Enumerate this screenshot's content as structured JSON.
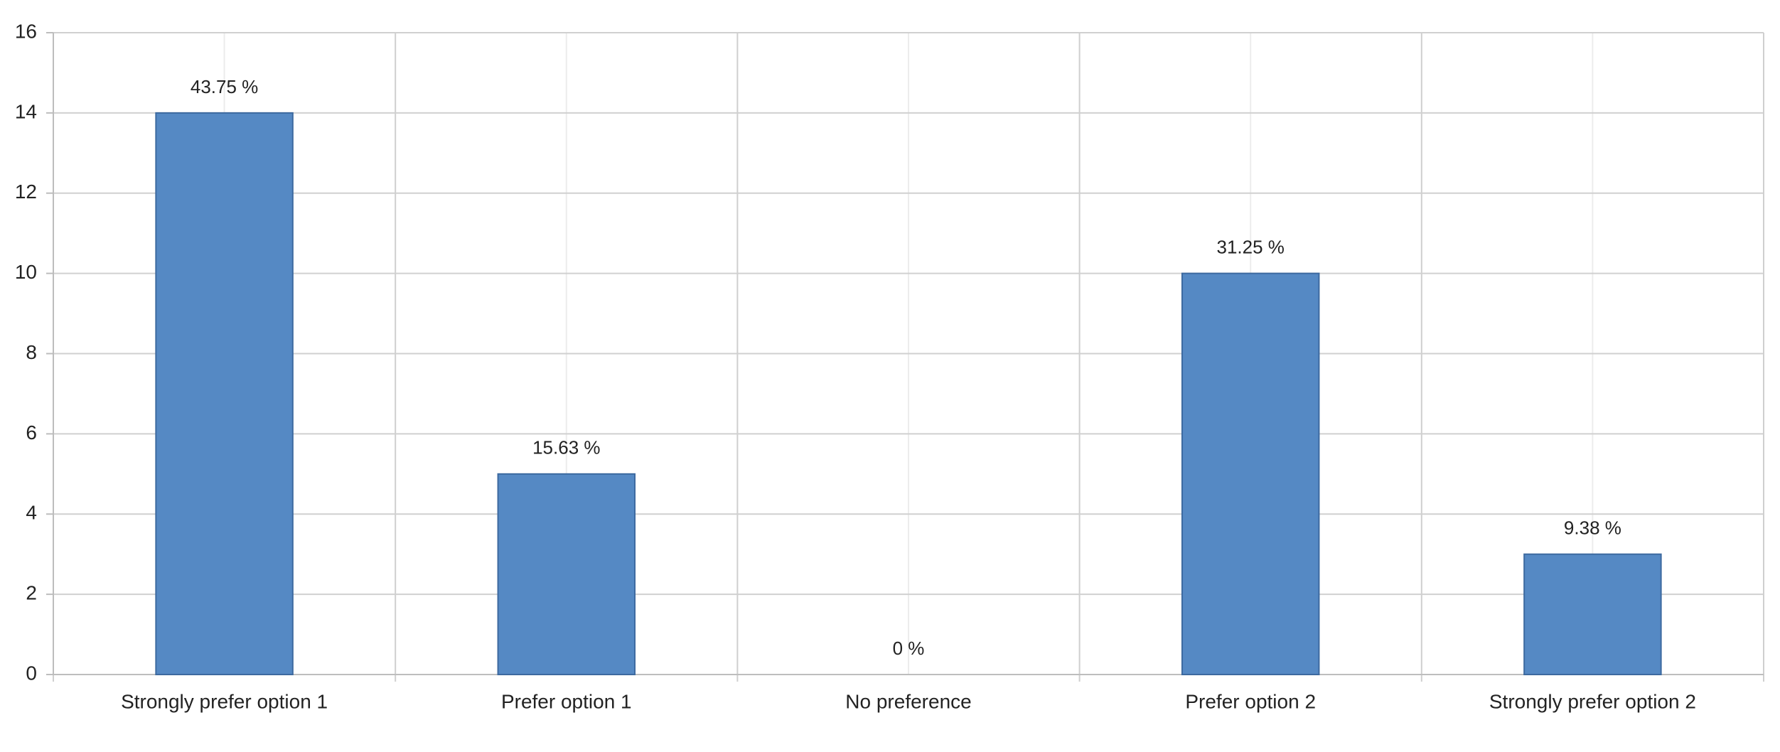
{
  "chart_data": {
    "type": "bar",
    "categories": [
      "Strongly prefer option 1",
      "Prefer option 1",
      "No preference",
      "Prefer option 2",
      "Strongly prefer option 2"
    ],
    "values": [
      14,
      5,
      0,
      10,
      3
    ],
    "value_labels": [
      "43.75 %",
      "15.63 %",
      "0 %",
      "31.25 %",
      "9.38 %"
    ],
    "color": "#5589c4",
    "ylim": [
      0,
      16
    ],
    "yticks": [
      0,
      2,
      4,
      6,
      8,
      10,
      12,
      14,
      16
    ],
    "grid": true
  }
}
